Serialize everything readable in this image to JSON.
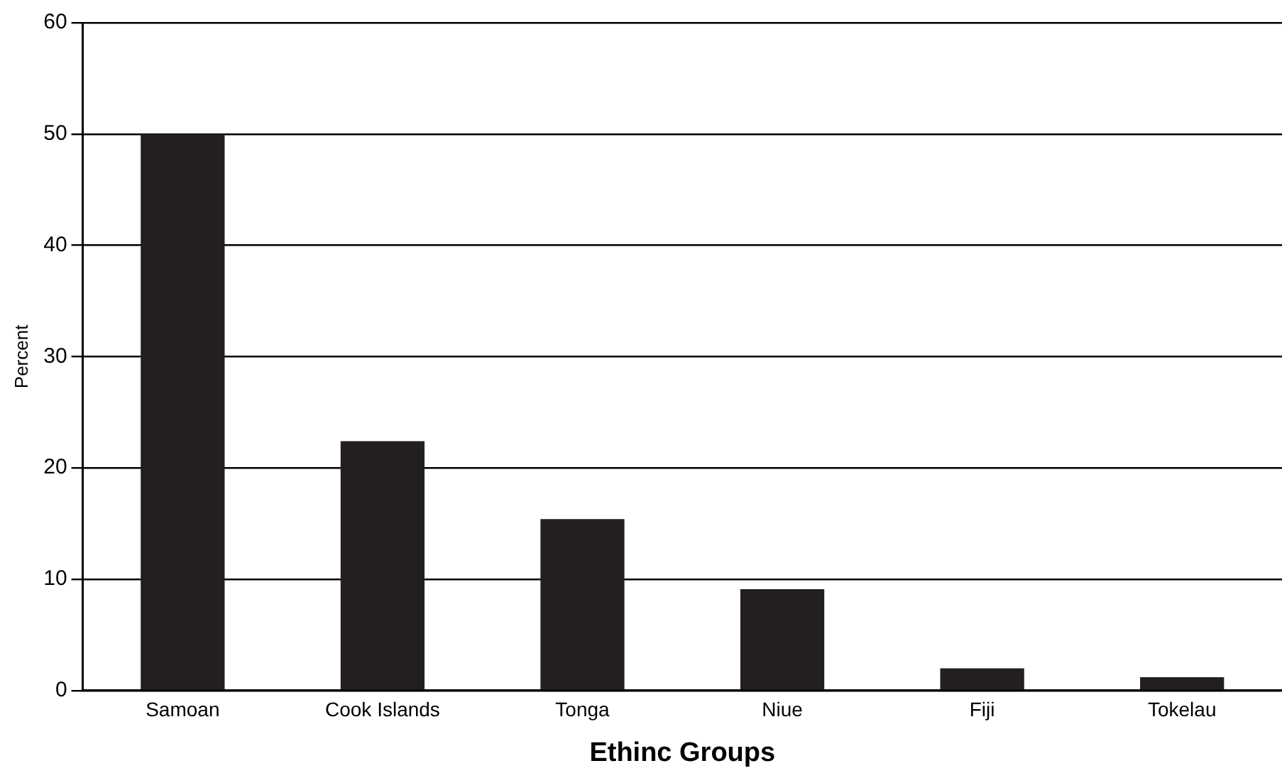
{
  "chart_data": {
    "type": "bar",
    "xlabel": "Ethinc Groups",
    "ylabel": "Percent",
    "categories": [
      "Samoan",
      "Cook Islands",
      "Tonga",
      "Niue",
      "Fiji",
      "Tokelau"
    ],
    "values": [
      50,
      22.4,
      15.4,
      9.1,
      2.0,
      1.2
    ],
    "color": "#231f20",
    "ylim": [
      0,
      60
    ],
    "yticks": [
      0,
      10,
      20,
      30,
      40,
      50,
      60
    ],
    "grid": "y",
    "legend": false
  }
}
